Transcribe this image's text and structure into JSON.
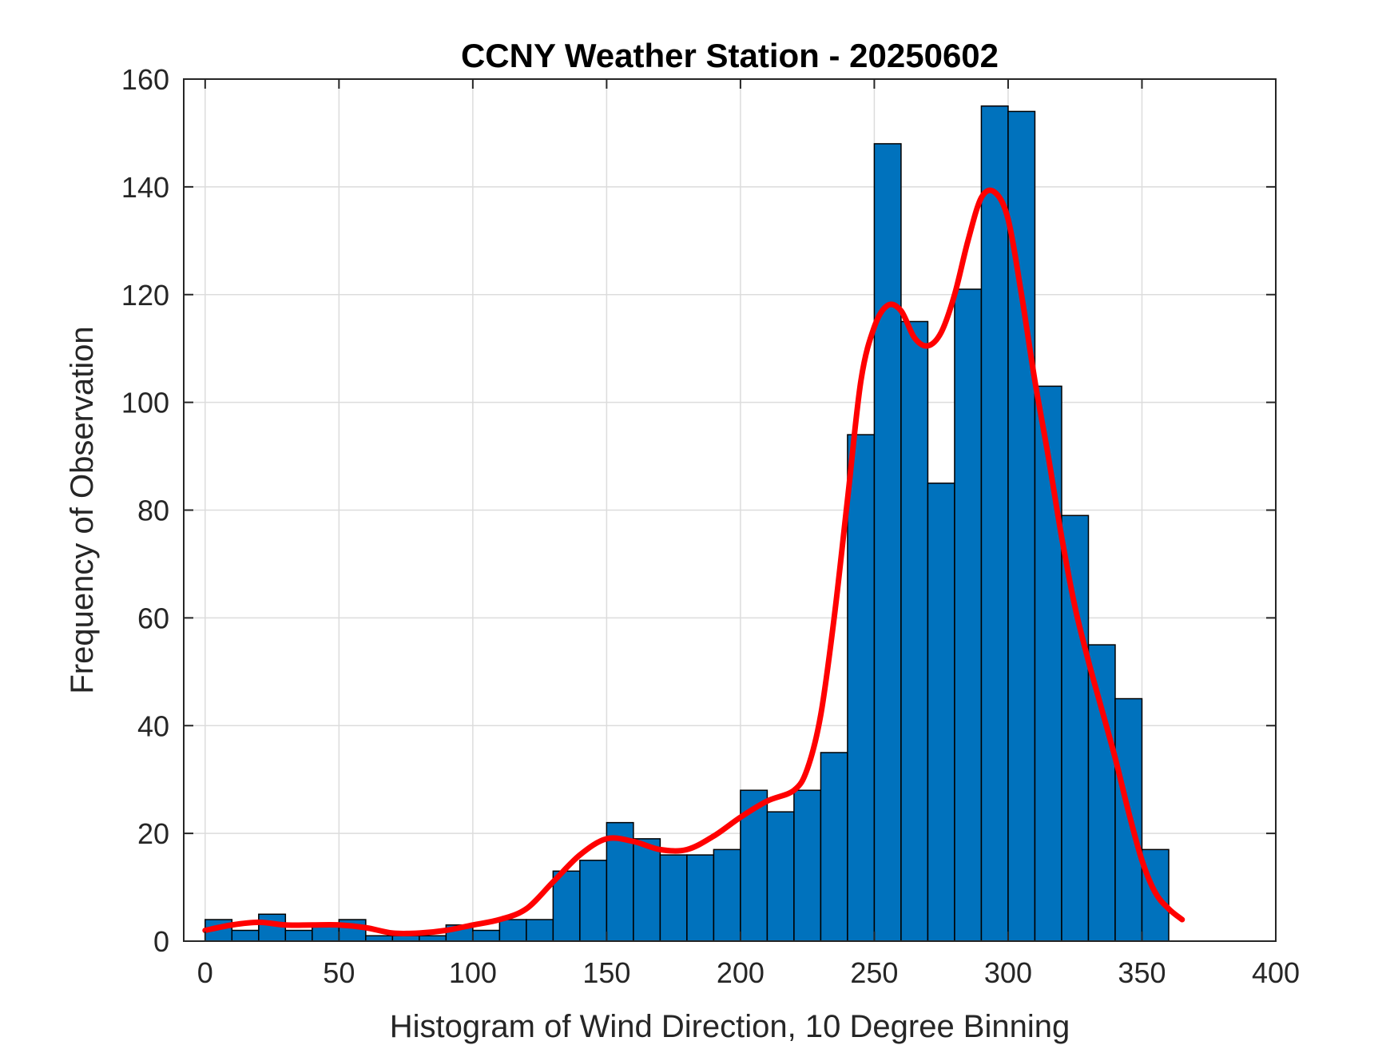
{
  "chart_data": {
    "type": "bar",
    "title": "CCNY Weather Station - 20250602",
    "xlabel": "Histogram of Wind Direction, 10 Degree Binning",
    "ylabel": "Frequency of Observation",
    "xlim": [
      -8,
      400
    ],
    "ylim": [
      0,
      160
    ],
    "xticks": [
      0,
      50,
      100,
      150,
      200,
      250,
      300,
      350,
      400
    ],
    "yticks": [
      0,
      20,
      40,
      60,
      80,
      100,
      120,
      140,
      160
    ],
    "grid": true,
    "bin_width": 10,
    "bins": [
      {
        "x0": 0,
        "x1": 10,
        "value": 4
      },
      {
        "x0": 10,
        "x1": 20,
        "value": 2
      },
      {
        "x0": 20,
        "x1": 30,
        "value": 5
      },
      {
        "x0": 30,
        "x1": 40,
        "value": 2
      },
      {
        "x0": 40,
        "x1": 50,
        "value": 3
      },
      {
        "x0": 50,
        "x1": 60,
        "value": 4
      },
      {
        "x0": 60,
        "x1": 70,
        "value": 1
      },
      {
        "x0": 70,
        "x1": 80,
        "value": 1
      },
      {
        "x0": 80,
        "x1": 90,
        "value": 1
      },
      {
        "x0": 90,
        "x1": 100,
        "value": 3
      },
      {
        "x0": 100,
        "x1": 110,
        "value": 2
      },
      {
        "x0": 110,
        "x1": 120,
        "value": 4
      },
      {
        "x0": 120,
        "x1": 130,
        "value": 4
      },
      {
        "x0": 130,
        "x1": 140,
        "value": 13
      },
      {
        "x0": 140,
        "x1": 150,
        "value": 15
      },
      {
        "x0": 150,
        "x1": 160,
        "value": 22
      },
      {
        "x0": 160,
        "x1": 170,
        "value": 19
      },
      {
        "x0": 170,
        "x1": 180,
        "value": 16
      },
      {
        "x0": 180,
        "x1": 190,
        "value": 16
      },
      {
        "x0": 190,
        "x1": 200,
        "value": 17
      },
      {
        "x0": 200,
        "x1": 210,
        "value": 28
      },
      {
        "x0": 210,
        "x1": 220,
        "value": 24
      },
      {
        "x0": 220,
        "x1": 230,
        "value": 28
      },
      {
        "x0": 230,
        "x1": 240,
        "value": 35
      },
      {
        "x0": 240,
        "x1": 250,
        "value": 94
      },
      {
        "x0": 250,
        "x1": 260,
        "value": 148
      },
      {
        "x0": 260,
        "x1": 270,
        "value": 115
      },
      {
        "x0": 270,
        "x1": 280,
        "value": 85
      },
      {
        "x0": 280,
        "x1": 290,
        "value": 121
      },
      {
        "x0": 290,
        "x1": 300,
        "value": 155
      },
      {
        "x0": 300,
        "x1": 310,
        "value": 154
      },
      {
        "x0": 310,
        "x1": 320,
        "value": 103
      },
      {
        "x0": 320,
        "x1": 330,
        "value": 79
      },
      {
        "x0": 330,
        "x1": 340,
        "value": 55
      },
      {
        "x0": 340,
        "x1": 350,
        "value": 45
      },
      {
        "x0": 350,
        "x1": 360,
        "value": 17
      }
    ],
    "fit_curve": {
      "x": [
        0,
        10,
        20,
        30,
        40,
        50,
        60,
        70,
        80,
        90,
        100,
        110,
        120,
        130,
        140,
        150,
        160,
        170,
        180,
        190,
        200,
        210,
        220,
        225,
        230,
        235,
        240,
        245,
        250,
        255,
        260,
        265,
        270,
        275,
        280,
        285,
        290,
        295,
        300,
        305,
        310,
        315,
        320,
        325,
        330,
        335,
        340,
        345,
        350,
        355,
        360,
        365
      ],
      "y": [
        2,
        3,
        3.5,
        3,
        3,
        3,
        2.5,
        1.5,
        1.5,
        2,
        3,
        4,
        6,
        11,
        16,
        19,
        18.5,
        17,
        17,
        19.5,
        23,
        26,
        28,
        32,
        42,
        60,
        82,
        104,
        114,
        118,
        117,
        112,
        110.5,
        113,
        120,
        130,
        138,
        139,
        134,
        120,
        104,
        90,
        75,
        62,
        52,
        43,
        34,
        24,
        15,
        9,
        6,
        4
      ],
      "color": "#FF0000"
    },
    "bar_color": "#0072BD"
  }
}
